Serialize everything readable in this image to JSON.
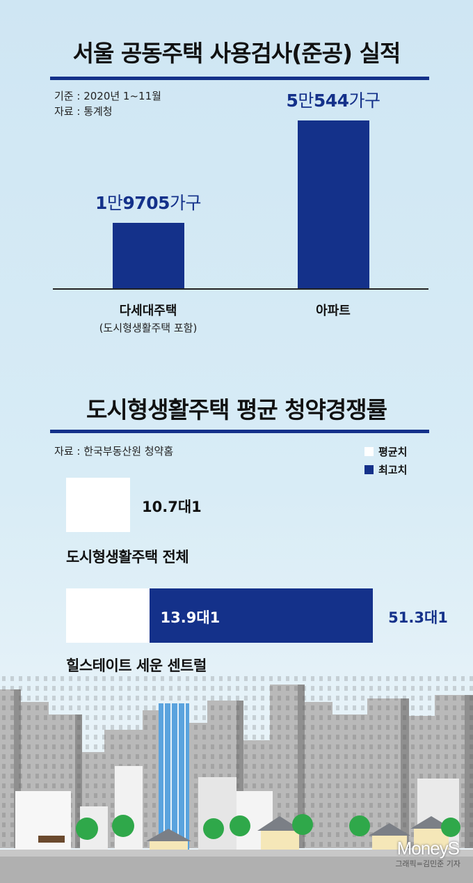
{
  "chart_data": [
    {
      "type": "bar",
      "title": "서울 공동주택 사용검사(준공) 실적",
      "notes": [
        "기준 : 2020년 1~11월",
        "자료 : 통계청"
      ],
      "categories": [
        "다세대주택",
        "아파트"
      ],
      "category_notes": [
        "(도시형생활주택 포함)",
        ""
      ],
      "values": [
        19705,
        50544
      ],
      "value_labels": [
        {
          "num1": "1",
          "unit1": "만",
          "num2": "9705",
          "unit2": "가구"
        },
        {
          "num1": "5",
          "unit1": "만",
          "num2": "544",
          "unit2": "가구"
        }
      ],
      "ylim": [
        0,
        55000
      ],
      "colors": {
        "bar": "#14318a"
      }
    },
    {
      "type": "bar",
      "orientation": "horizontal",
      "title": "도시형생활주택 평균 청약경쟁률",
      "source": "자료 : 한국부동산원 청약홈",
      "legend": [
        {
          "label": "평균치",
          "color": "#ffffff"
        },
        {
          "label": "최고치",
          "color": "#14318a"
        }
      ],
      "legend_position": "top-right",
      "categories": [
        "도시형생활주택 전체",
        "힐스테이트 세운 센트럴"
      ],
      "series": [
        {
          "name": "평균치",
          "values": [
            10.7,
            13.9
          ]
        },
        {
          "name": "최고치",
          "values": [
            null,
            51.3
          ]
        }
      ],
      "value_labels": [
        {
          "avg": "10.7",
          "avg_unit": "대1",
          "max": "",
          "max_unit": ""
        },
        {
          "avg": "13.9",
          "avg_unit": "대1",
          "max": "51.3",
          "max_unit": "대1"
        }
      ],
      "colors": {
        "avg": "#ffffff",
        "max": "#14318a"
      }
    }
  ],
  "credit": "그래픽=김민준 기자",
  "logo": "MoneyS"
}
